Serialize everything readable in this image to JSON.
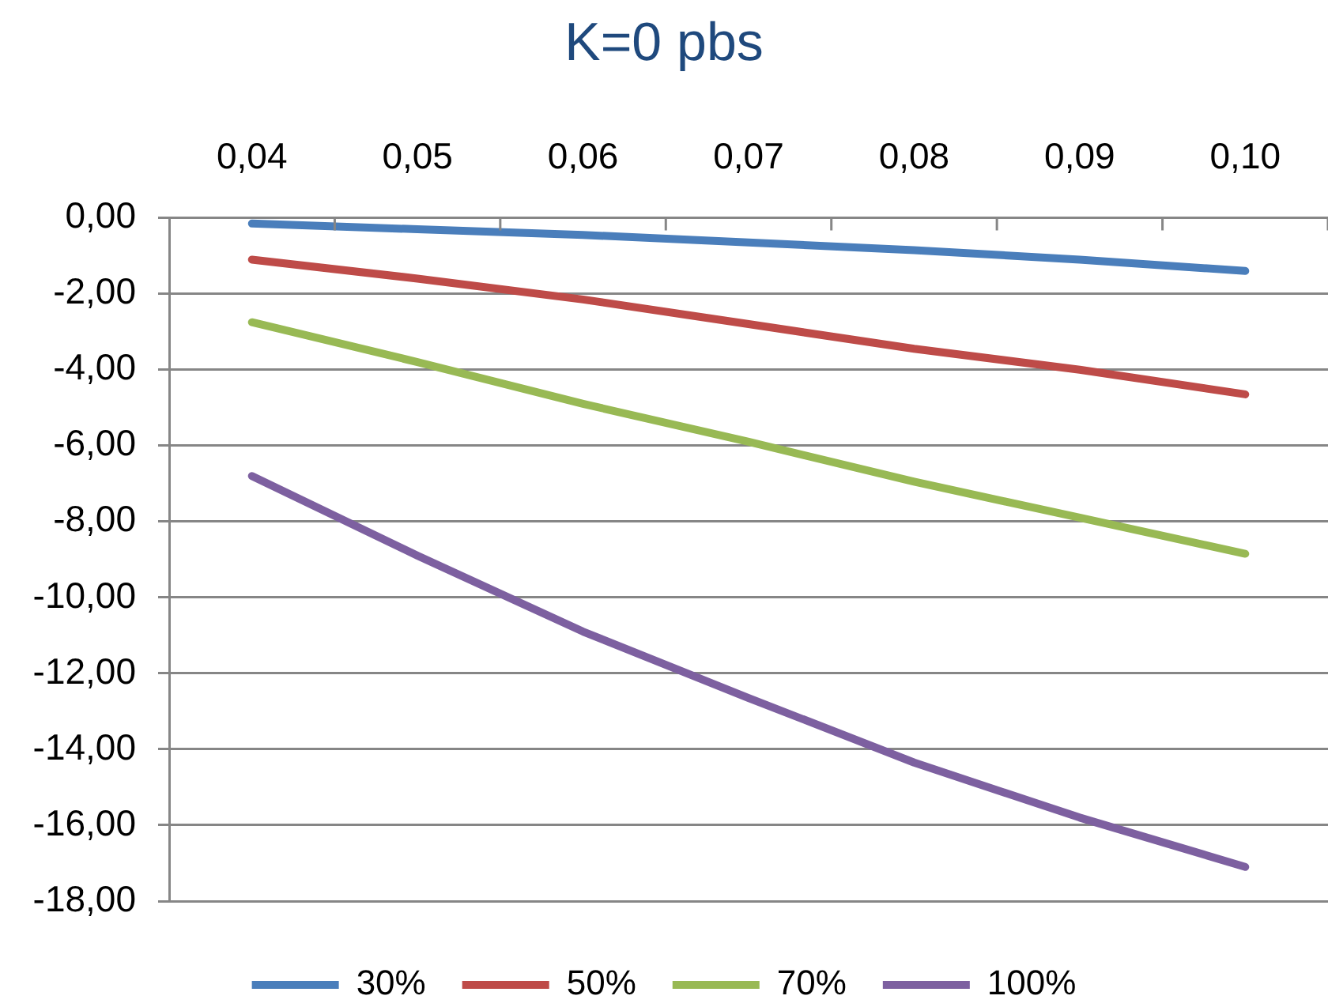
{
  "chart_data": {
    "type": "line",
    "title": "K=0 pbs",
    "categories": [
      "0,04",
      "0,05",
      "0,06",
      "0,07",
      "0,08",
      "0,09",
      "0,10"
    ],
    "series": [
      {
        "name": "30%",
        "color": "#4a7ebb",
        "values": [
          -0.15,
          -0.3,
          -0.45,
          -0.65,
          -0.85,
          -1.1,
          -1.4
        ]
      },
      {
        "name": "50%",
        "color": "#be4b48",
        "values": [
          -1.1,
          -1.6,
          -2.15,
          -2.8,
          -3.45,
          -4.0,
          -4.65
        ]
      },
      {
        "name": "70%",
        "color": "#98b954",
        "values": [
          -2.75,
          -3.8,
          -4.9,
          -5.9,
          -6.95,
          -7.9,
          -8.85
        ]
      },
      {
        "name": "100%",
        "color": "#7d60a0",
        "values": [
          -6.8,
          -8.9,
          -10.9,
          -12.65,
          -14.35,
          -15.8,
          -17.1
        ]
      }
    ],
    "ylim": [
      -18,
      0
    ],
    "yticks": [
      {
        "value": -18,
        "label": "-18,00"
      },
      {
        "value": -16,
        "label": "-16,00"
      },
      {
        "value": -14,
        "label": "-14,00"
      },
      {
        "value": -12,
        "label": "-12,00"
      },
      {
        "value": -10,
        "label": "-10,00"
      },
      {
        "value": -8,
        "label": "-8,00"
      },
      {
        "value": -6,
        "label": "-6,00"
      },
      {
        "value": -4,
        "label": "-4,00"
      },
      {
        "value": -2,
        "label": "-2,00"
      },
      {
        "value": 0,
        "label": "0,00"
      }
    ],
    "grid": "y",
    "legend": "bottom",
    "marker": "none",
    "line_style": "solid"
  }
}
